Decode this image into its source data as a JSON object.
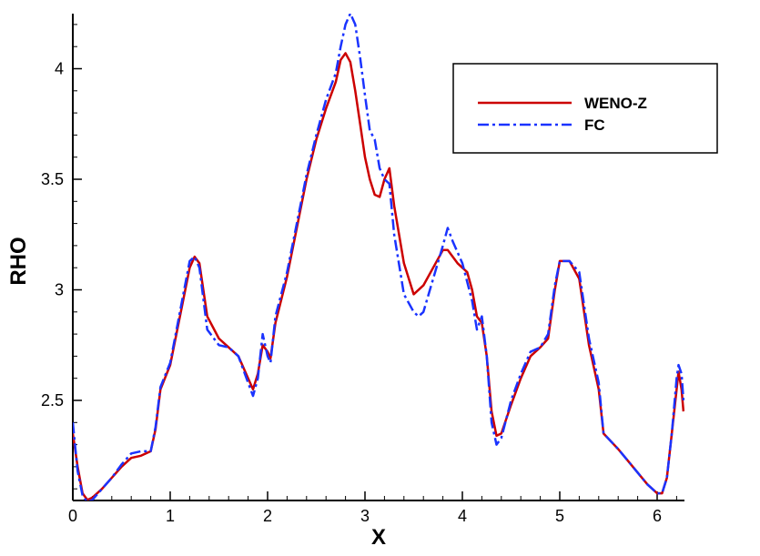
{
  "chart_data": {
    "type": "line",
    "xlabel": "X",
    "ylabel": "RHO",
    "xlim": [
      0,
      6.28
    ],
    "ylim": [
      2.05,
      4.25
    ],
    "x_ticks": [
      0,
      1,
      2,
      3,
      4,
      5,
      6
    ],
    "y_ticks": [
      2.5,
      3,
      3.5,
      4
    ],
    "x_tick_labels": [
      "0",
      "1",
      "2",
      "3",
      "4",
      "5",
      "6"
    ],
    "y_tick_labels": [
      "2.5",
      "3",
      "3.5",
      "4"
    ],
    "grid": false,
    "legend_position": "top-right",
    "series": [
      {
        "name": "WENO-Z",
        "color": "#cc0000",
        "style": "solid",
        "points": [
          [
            0.0,
            2.35
          ],
          [
            0.05,
            2.2
          ],
          [
            0.1,
            2.08
          ],
          [
            0.15,
            2.05
          ],
          [
            0.2,
            2.06
          ],
          [
            0.3,
            2.1
          ],
          [
            0.4,
            2.15
          ],
          [
            0.5,
            2.2
          ],
          [
            0.6,
            2.24
          ],
          [
            0.7,
            2.25
          ],
          [
            0.8,
            2.27
          ],
          [
            0.85,
            2.37
          ],
          [
            0.9,
            2.55
          ],
          [
            1.0,
            2.66
          ],
          [
            1.1,
            2.88
          ],
          [
            1.2,
            3.1
          ],
          [
            1.25,
            3.15
          ],
          [
            1.3,
            3.12
          ],
          [
            1.38,
            2.88
          ],
          [
            1.5,
            2.78
          ],
          [
            1.6,
            2.74
          ],
          [
            1.7,
            2.7
          ],
          [
            1.8,
            2.6
          ],
          [
            1.85,
            2.55
          ],
          [
            1.9,
            2.62
          ],
          [
            1.95,
            2.75
          ],
          [
            2.0,
            2.72
          ],
          [
            2.03,
            2.69
          ],
          [
            2.08,
            2.85
          ],
          [
            2.2,
            3.06
          ],
          [
            2.3,
            3.28
          ],
          [
            2.4,
            3.5
          ],
          [
            2.5,
            3.68
          ],
          [
            2.6,
            3.82
          ],
          [
            2.7,
            3.94
          ],
          [
            2.75,
            4.04
          ],
          [
            2.8,
            4.07
          ],
          [
            2.85,
            4.03
          ],
          [
            2.9,
            3.9
          ],
          [
            2.95,
            3.75
          ],
          [
            3.0,
            3.6
          ],
          [
            3.05,
            3.5
          ],
          [
            3.1,
            3.43
          ],
          [
            3.15,
            3.42
          ],
          [
            3.2,
            3.5
          ],
          [
            3.25,
            3.55
          ],
          [
            3.3,
            3.38
          ],
          [
            3.4,
            3.12
          ],
          [
            3.5,
            2.98
          ],
          [
            3.6,
            3.02
          ],
          [
            3.7,
            3.1
          ],
          [
            3.8,
            3.18
          ],
          [
            3.85,
            3.18
          ],
          [
            3.95,
            3.12
          ],
          [
            4.05,
            3.08
          ],
          [
            4.1,
            3.0
          ],
          [
            4.15,
            2.88
          ],
          [
            4.2,
            2.85
          ],
          [
            4.25,
            2.7
          ],
          [
            4.3,
            2.45
          ],
          [
            4.35,
            2.34
          ],
          [
            4.4,
            2.35
          ],
          [
            4.5,
            2.48
          ],
          [
            4.6,
            2.6
          ],
          [
            4.7,
            2.7
          ],
          [
            4.8,
            2.74
          ],
          [
            4.88,
            2.78
          ],
          [
            4.95,
            3.0
          ],
          [
            5.0,
            3.13
          ],
          [
            5.1,
            3.13
          ],
          [
            5.2,
            3.05
          ],
          [
            5.3,
            2.75
          ],
          [
            5.4,
            2.55
          ],
          [
            5.45,
            2.35
          ],
          [
            5.6,
            2.28
          ],
          [
            5.75,
            2.2
          ],
          [
            5.9,
            2.12
          ],
          [
            6.0,
            2.08
          ],
          [
            6.05,
            2.08
          ],
          [
            6.1,
            2.15
          ],
          [
            6.15,
            2.35
          ],
          [
            6.2,
            2.55
          ],
          [
            6.22,
            2.63
          ],
          [
            6.25,
            2.55
          ],
          [
            6.27,
            2.45
          ]
        ]
      },
      {
        "name": "FC",
        "color": "#1a33ff",
        "style": "dash-dot",
        "points": [
          [
            0.0,
            2.4
          ],
          [
            0.05,
            2.18
          ],
          [
            0.1,
            2.07
          ],
          [
            0.15,
            2.04
          ],
          [
            0.2,
            2.05
          ],
          [
            0.3,
            2.1
          ],
          [
            0.4,
            2.15
          ],
          [
            0.5,
            2.21
          ],
          [
            0.6,
            2.26
          ],
          [
            0.7,
            2.27
          ],
          [
            0.8,
            2.27
          ],
          [
            0.85,
            2.38
          ],
          [
            0.9,
            2.56
          ],
          [
            1.0,
            2.67
          ],
          [
            1.1,
            2.9
          ],
          [
            1.2,
            3.13
          ],
          [
            1.25,
            3.15
          ],
          [
            1.3,
            3.1
          ],
          [
            1.38,
            2.82
          ],
          [
            1.5,
            2.75
          ],
          [
            1.6,
            2.74
          ],
          [
            1.7,
            2.7
          ],
          [
            1.8,
            2.58
          ],
          [
            1.85,
            2.52
          ],
          [
            1.9,
            2.6
          ],
          [
            1.95,
            2.8
          ],
          [
            2.0,
            2.7
          ],
          [
            2.03,
            2.67
          ],
          [
            2.08,
            2.88
          ],
          [
            2.2,
            3.08
          ],
          [
            2.3,
            3.3
          ],
          [
            2.4,
            3.52
          ],
          [
            2.5,
            3.7
          ],
          [
            2.6,
            3.86
          ],
          [
            2.7,
            3.98
          ],
          [
            2.75,
            4.1
          ],
          [
            2.8,
            4.2
          ],
          [
            2.85,
            4.25
          ],
          [
            2.9,
            4.2
          ],
          [
            2.95,
            4.05
          ],
          [
            3.0,
            3.88
          ],
          [
            3.05,
            3.72
          ],
          [
            3.1,
            3.68
          ],
          [
            3.15,
            3.55
          ],
          [
            3.2,
            3.5
          ],
          [
            3.25,
            3.48
          ],
          [
            3.3,
            3.25
          ],
          [
            3.4,
            2.98
          ],
          [
            3.5,
            2.9
          ],
          [
            3.55,
            2.88
          ],
          [
            3.6,
            2.9
          ],
          [
            3.7,
            3.05
          ],
          [
            3.8,
            3.2
          ],
          [
            3.85,
            3.28
          ],
          [
            3.9,
            3.22
          ],
          [
            4.0,
            3.12
          ],
          [
            4.1,
            2.95
          ],
          [
            4.15,
            2.82
          ],
          [
            4.2,
            2.88
          ],
          [
            4.25,
            2.7
          ],
          [
            4.3,
            2.4
          ],
          [
            4.35,
            2.3
          ],
          [
            4.4,
            2.33
          ],
          [
            4.5,
            2.5
          ],
          [
            4.6,
            2.62
          ],
          [
            4.7,
            2.72
          ],
          [
            4.8,
            2.74
          ],
          [
            4.88,
            2.8
          ],
          [
            4.95,
            3.02
          ],
          [
            5.0,
            3.13
          ],
          [
            5.1,
            3.13
          ],
          [
            5.2,
            3.08
          ],
          [
            5.3,
            2.78
          ],
          [
            5.4,
            2.58
          ],
          [
            5.45,
            2.35
          ],
          [
            5.6,
            2.28
          ],
          [
            5.75,
            2.2
          ],
          [
            5.9,
            2.12
          ],
          [
            6.0,
            2.08
          ],
          [
            6.05,
            2.08
          ],
          [
            6.1,
            2.15
          ],
          [
            6.15,
            2.35
          ],
          [
            6.2,
            2.6
          ],
          [
            6.22,
            2.66
          ],
          [
            6.25,
            2.62
          ],
          [
            6.27,
            2.5
          ]
        ]
      }
    ]
  }
}
